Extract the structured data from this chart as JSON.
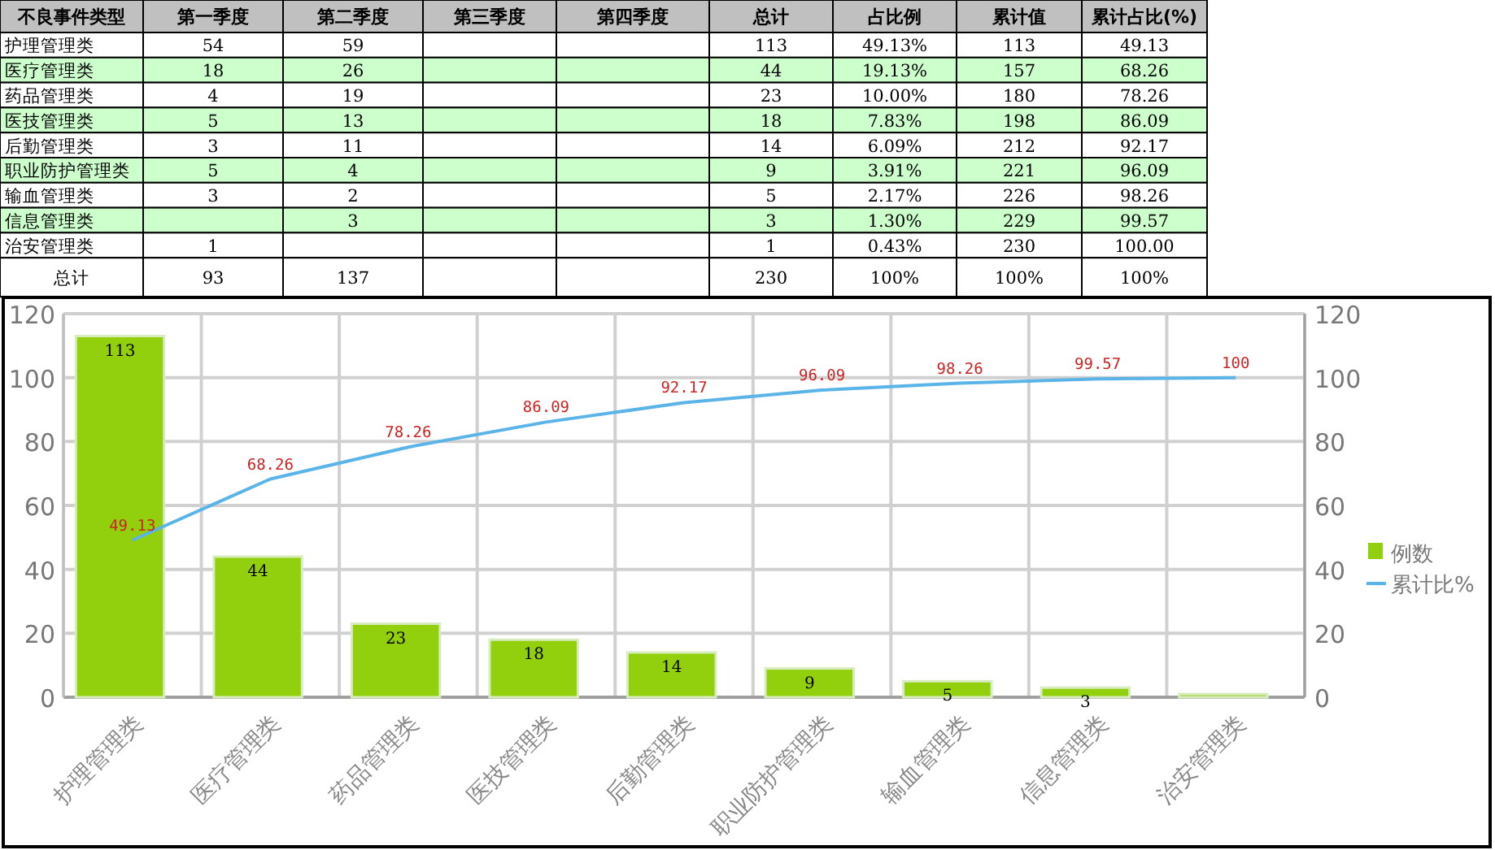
{
  "chart_data": [
    {
      "type": "other",
      "categories": [
        "不良事件类型",
        "第一季度",
        "第二季度",
        "第三季度",
        "第四季度",
        "总计",
        "占比例",
        "累计值",
        "累计占比(%)"
      ],
      "cell_labels": [
        [
          "护理管理类",
          "54",
          "59",
          null,
          null,
          "113",
          "49.13%",
          "113",
          "49.13"
        ],
        [
          "医疗管理类",
          "18",
          "26",
          null,
          null,
          "44",
          "19.13%",
          "157",
          "68.26"
        ],
        [
          "药品管理类",
          "4",
          "19",
          null,
          null,
          "23",
          "10.00%",
          "180",
          "78.26"
        ],
        [
          "医技管理类",
          "5",
          "13",
          null,
          null,
          "18",
          "7.83%",
          "198",
          "86.09"
        ],
        [
          "后勤管理类",
          "3",
          "11",
          null,
          null,
          "14",
          "6.09%",
          "212",
          "92.17"
        ],
        [
          "职业防护管理类",
          "5",
          "4",
          null,
          null,
          "9",
          "3.91%",
          "221",
          "96.09"
        ],
        [
          "输血管理类",
          "3",
          "2",
          null,
          null,
          "5",
          "2.17%",
          "226",
          "98.26"
        ],
        [
          "信息管理类",
          null,
          "3",
          null,
          null,
          "3",
          "1.30%",
          "229",
          "99.57"
        ],
        [
          "治安管理类",
          "1",
          null,
          null,
          null,
          "1",
          "0.43%",
          "230",
          "100.00"
        ],
        [
          "总计",
          "93",
          "137",
          null,
          null,
          "230",
          "100%",
          "100%",
          "100%"
        ]
      ]
    },
    {
      "type": "bar",
      "categories": [
        "护理管理类",
        "医疗管理类",
        "药品管理类",
        "医技管理类",
        "后勤管理类",
        "职业防护管理类",
        "输血管理类",
        "信息管理类",
        "治安管理类"
      ],
      "series": [
        {
          "name": "例数",
          "type": "bar",
          "color": "#92cf0c",
          "values": [
            113,
            44,
            23,
            18,
            14,
            9,
            5,
            3,
            1
          ],
          "value_labels": [
            "113",
            "44",
            "23",
            "18",
            "14",
            "9",
            "5",
            "3",
            null
          ]
        },
        {
          "name": "累计比%",
          "type": "line",
          "axis": "y2",
          "color": "#5ab4e8",
          "values": [
            49.13,
            68.26,
            78.26,
            86.09,
            92.17,
            96.09,
            98.26,
            99.57,
            100
          ],
          "value_labels": [
            "49.13",
            "68.26",
            "78.26",
            "86.09",
            "92.17",
            "96.09",
            "98.26",
            "99.57",
            "100"
          ]
        }
      ],
      "ylim": [
        0,
        120
      ],
      "yticks": [
        0,
        20,
        40,
        60,
        80,
        100,
        120
      ],
      "y2lim": [
        0,
        120
      ],
      "y2ticks": [
        0,
        20,
        40,
        60,
        80,
        100,
        120
      ],
      "grid": true,
      "legend": "right"
    }
  ]
}
